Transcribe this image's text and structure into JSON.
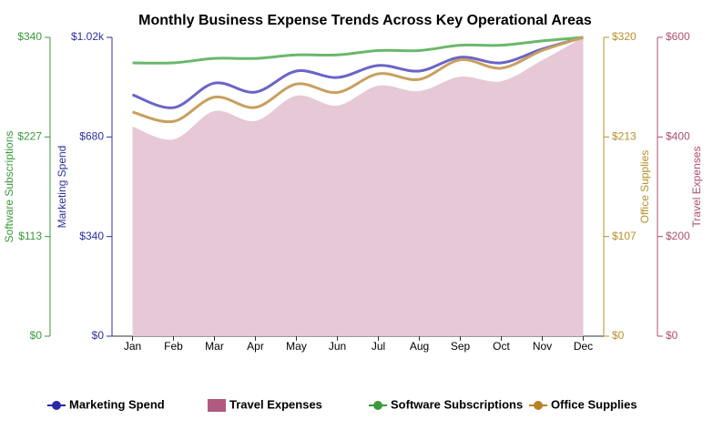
{
  "chart_data": {
    "type": "line",
    "title": "Monthly Business Expense Trends Across Key Operational Areas",
    "categories": [
      "Jan",
      "Feb",
      "Mar",
      "Apr",
      "May",
      "Jun",
      "Jul",
      "Aug",
      "Sep",
      "Oct",
      "Nov",
      "Dec"
    ],
    "series": [
      {
        "name": "Marketing Spend",
        "kind": "line",
        "color": "#6a64c8",
        "axis_color": "#2f2fa0",
        "marker_color": "#2a27a8",
        "axis_side": "left",
        "values": [
          824,
          780,
          864,
          833,
          905,
          883,
          924,
          905,
          952,
          933,
          980,
          1020
        ],
        "ylim": [
          0,
          1020
        ],
        "yticks": [
          {
            "value": 0,
            "label": "$0"
          },
          {
            "value": 340,
            "label": "$340"
          },
          {
            "value": 680,
            "label": "$680"
          },
          {
            "value": 1020,
            "label": "$1.02k"
          }
        ]
      },
      {
        "name": "Travel Expenses",
        "kind": "area",
        "color": "#e6c8d6",
        "axis_color": "#b05070",
        "marker_color": "#b05a80",
        "axis_side": "right",
        "values": [
          421,
          395,
          452,
          432,
          483,
          463,
          503,
          492,
          521,
          512,
          554,
          600
        ],
        "ylim": [
          0,
          600
        ],
        "yticks": [
          {
            "value": 0,
            "label": "$0"
          },
          {
            "value": 200,
            "label": "$200"
          },
          {
            "value": 400,
            "label": "$400"
          },
          {
            "value": 600,
            "label": "$600"
          }
        ]
      },
      {
        "name": "Software Subscriptions",
        "kind": "line",
        "color": "#6ab86a",
        "axis_color": "#3a9a3a",
        "marker_color": "#3a9a3a",
        "axis_side": "left",
        "values": [
          311,
          311,
          316,
          316,
          320,
          320,
          325,
          325,
          331,
          331,
          336,
          340
        ],
        "ylim": [
          0,
          340
        ],
        "yticks": [
          {
            "value": 0,
            "label": "$0"
          },
          {
            "value": 113.33,
            "label": "$113"
          },
          {
            "value": 226.67,
            "label": "$227"
          },
          {
            "value": 340,
            "label": "$340"
          }
        ]
      },
      {
        "name": "Office Supplies",
        "kind": "line",
        "color": "#c8a060",
        "axis_color": "#b8902a",
        "marker_color": "#b88025",
        "axis_side": "right",
        "values": [
          240,
          230,
          256,
          245,
          270,
          261,
          281,
          275,
          296,
          287,
          306,
          320
        ],
        "ylim": [
          0,
          320
        ],
        "yticks": [
          {
            "value": 0,
            "label": "$0"
          },
          {
            "value": 106.67,
            "label": "$107"
          },
          {
            "value": 213.33,
            "label": "$213"
          },
          {
            "value": 320,
            "label": "$320"
          }
        ]
      }
    ]
  }
}
